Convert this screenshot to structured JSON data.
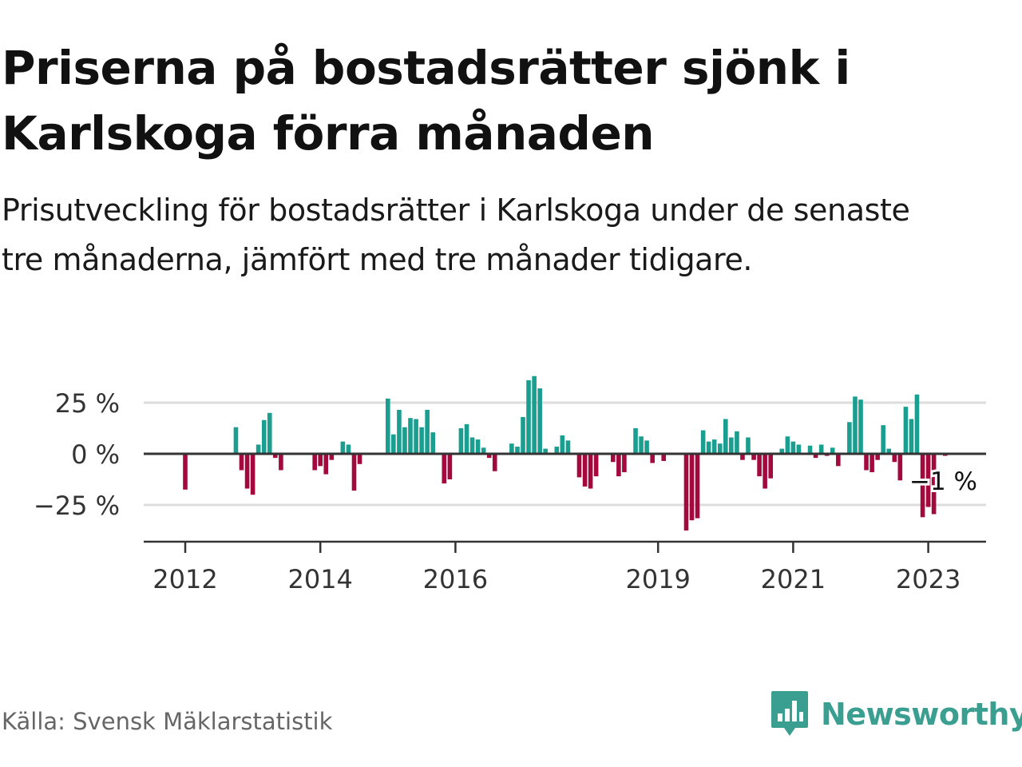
{
  "header": {
    "title": "Priserna på bostadsrätter sjönk i Karlskoga förra månaden",
    "subtitle": "Prisutveckling för bostadsrätter i Karlskoga under de senaste tre månaderna, jämfört med tre månader tidigare."
  },
  "footer": {
    "source": "Källa: Svensk Mäklarstatistik",
    "brand": "Newsworthy",
    "brand_icon": "bar-chart-speech-bubble-icon"
  },
  "colors": {
    "positive": "#1a9e8f",
    "negative": "#a3093d",
    "gridline": "#dddddd",
    "axis": "#333333",
    "brand": "#3a9e90"
  },
  "chart_data": {
    "type": "bar",
    "y_unit": "%",
    "ylim": [
      -42,
      42
    ],
    "y_ticks": [
      25,
      0,
      -25
    ],
    "y_tick_labels": [
      "25 %",
      "0 %",
      "−25 %"
    ],
    "x_ticks": [
      2012,
      2014,
      2016,
      2019,
      2021,
      2023
    ],
    "x_tick_labels": [
      "2012",
      "2014",
      "2016",
      "2019",
      "2021",
      "2023"
    ],
    "grid": "horizontal",
    "last_value_label": "−1 %",
    "series": [
      {
        "values": [
          [
            2012.0,
            -17.5
          ],
          [
            2012.083,
            0
          ],
          [
            2012.167,
            0
          ],
          [
            2012.25,
            0
          ],
          [
            2012.333,
            0
          ],
          [
            2012.417,
            0
          ],
          [
            2012.5,
            0
          ],
          [
            2012.583,
            0
          ],
          [
            2012.667,
            0
          ],
          [
            2012.75,
            13
          ],
          [
            2012.833,
            -8
          ],
          [
            2012.917,
            -17
          ],
          [
            2013.0,
            -20
          ],
          [
            2013.083,
            4.5
          ],
          [
            2013.167,
            16.5
          ],
          [
            2013.25,
            20
          ],
          [
            2013.333,
            -2
          ],
          [
            2013.417,
            -8
          ],
          [
            2013.5,
            0
          ],
          [
            2013.583,
            0
          ],
          [
            2013.667,
            0
          ],
          [
            2013.75,
            0
          ],
          [
            2013.833,
            0
          ],
          [
            2013.917,
            -8
          ],
          [
            2014.0,
            -6
          ],
          [
            2014.083,
            -10
          ],
          [
            2014.167,
            -3
          ],
          [
            2014.25,
            0
          ],
          [
            2014.333,
            6
          ],
          [
            2014.417,
            4.5
          ],
          [
            2014.5,
            -18
          ],
          [
            2014.583,
            -5
          ],
          [
            2014.667,
            0
          ],
          [
            2014.75,
            0
          ],
          [
            2014.833,
            0
          ],
          [
            2014.917,
            0
          ],
          [
            2015.0,
            27
          ],
          [
            2015.083,
            9.5
          ],
          [
            2015.167,
            21.5
          ],
          [
            2015.25,
            13
          ],
          [
            2015.333,
            17.5
          ],
          [
            2015.417,
            17
          ],
          [
            2015.5,
            13
          ],
          [
            2015.583,
            21.5
          ],
          [
            2015.667,
            10.5
          ],
          [
            2015.75,
            0
          ],
          [
            2015.833,
            -14.5
          ],
          [
            2015.917,
            -12.5
          ],
          [
            2016.0,
            0
          ],
          [
            2016.083,
            12.5
          ],
          [
            2016.167,
            14.5
          ],
          [
            2016.25,
            8
          ],
          [
            2016.333,
            7
          ],
          [
            2016.417,
            3
          ],
          [
            2016.5,
            -2
          ],
          [
            2016.583,
            -8.5
          ],
          [
            2016.667,
            0
          ],
          [
            2016.75,
            0
          ],
          [
            2016.833,
            5
          ],
          [
            2016.917,
            3.5
          ],
          [
            2017.0,
            18
          ],
          [
            2017.083,
            36
          ],
          [
            2017.167,
            38
          ],
          [
            2017.25,
            32
          ],
          [
            2017.333,
            2.5
          ],
          [
            2017.417,
            0
          ],
          [
            2017.5,
            3.5
          ],
          [
            2017.583,
            9
          ],
          [
            2017.667,
            6.5
          ],
          [
            2017.75,
            0
          ],
          [
            2017.833,
            -11.5
          ],
          [
            2017.917,
            -16
          ],
          [
            2018.0,
            -17
          ],
          [
            2018.083,
            -11
          ],
          [
            2018.167,
            0
          ],
          [
            2018.25,
            0
          ],
          [
            2018.333,
            -4
          ],
          [
            2018.417,
            -11
          ],
          [
            2018.5,
            -9
          ],
          [
            2018.583,
            0
          ],
          [
            2018.667,
            12.5
          ],
          [
            2018.75,
            8.5
          ],
          [
            2018.833,
            6.5
          ],
          [
            2018.917,
            -4.5
          ],
          [
            2019.0,
            0
          ],
          [
            2019.083,
            -3.5
          ],
          [
            2019.167,
            0
          ],
          [
            2019.25,
            0
          ],
          [
            2019.333,
            0
          ],
          [
            2019.417,
            -37.5
          ],
          [
            2019.5,
            -32.5
          ],
          [
            2019.583,
            -31.5
          ],
          [
            2019.667,
            11.5
          ],
          [
            2019.75,
            6
          ],
          [
            2019.833,
            7
          ],
          [
            2019.917,
            5
          ],
          [
            2020.0,
            17
          ],
          [
            2020.083,
            8
          ],
          [
            2020.167,
            11
          ],
          [
            2020.25,
            -3
          ],
          [
            2020.333,
            8
          ],
          [
            2020.417,
            -3
          ],
          [
            2020.5,
            -11
          ],
          [
            2020.583,
            -17
          ],
          [
            2020.667,
            -12
          ],
          [
            2020.75,
            0
          ],
          [
            2020.833,
            2.5
          ],
          [
            2020.917,
            8.5
          ],
          [
            2021.0,
            6
          ],
          [
            2021.083,
            4.5
          ],
          [
            2021.167,
            0
          ],
          [
            2021.25,
            4
          ],
          [
            2021.333,
            -2
          ],
          [
            2021.417,
            4.5
          ],
          [
            2021.5,
            -1
          ],
          [
            2021.583,
            3
          ],
          [
            2021.667,
            -6
          ],
          [
            2021.75,
            -0.5
          ],
          [
            2021.833,
            15.5
          ],
          [
            2021.917,
            28
          ],
          [
            2022.0,
            26.5
          ],
          [
            2022.083,
            -8
          ],
          [
            2022.167,
            -9
          ],
          [
            2022.25,
            -3
          ],
          [
            2022.333,
            14
          ],
          [
            2022.417,
            2.5
          ],
          [
            2022.5,
            -4
          ],
          [
            2022.583,
            -13
          ],
          [
            2022.667,
            23
          ],
          [
            2022.75,
            17
          ],
          [
            2022.833,
            29
          ],
          [
            2022.917,
            -31
          ],
          [
            2023.0,
            -26
          ],
          [
            2023.083,
            -29.5
          ],
          [
            2023.167,
            0
          ],
          [
            2023.25,
            -1
          ]
        ]
      }
    ]
  }
}
